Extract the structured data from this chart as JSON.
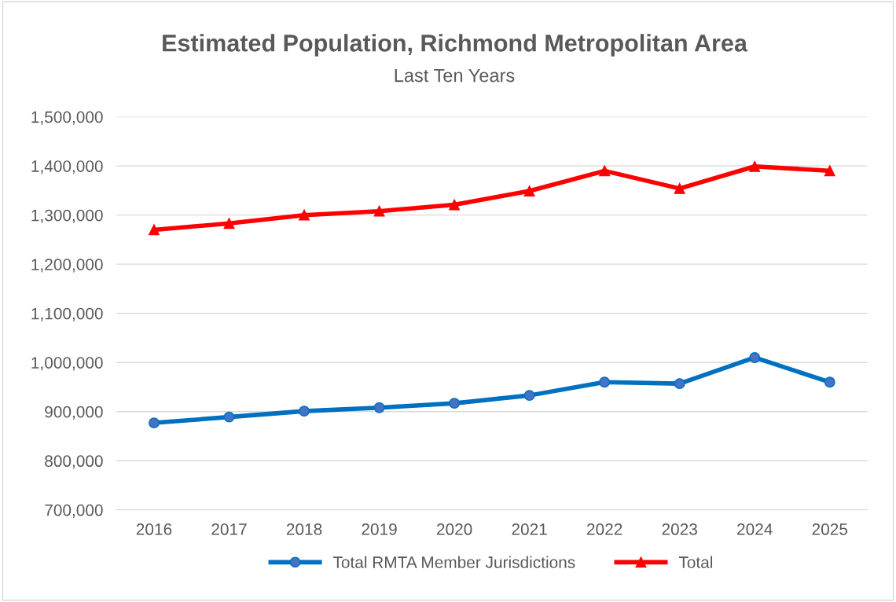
{
  "chart_data": {
    "type": "line",
    "title": "Estimated Population, Richmond Metropolitan Area",
    "subtitle": "Last Ten Years",
    "categories": [
      "2016",
      "2017",
      "2018",
      "2019",
      "2020",
      "2021",
      "2022",
      "2023",
      "2024",
      "2025"
    ],
    "series": [
      {
        "name": "Total RMTA Member Jurisdictions",
        "color": "#0070c0",
        "marker": "circle",
        "values": [
          877000,
          889000,
          901000,
          908000,
          917000,
          933000,
          960000,
          957000,
          1010000,
          960000
        ]
      },
      {
        "name": "Total",
        "color": "#ff0000",
        "marker": "triangle",
        "values": [
          1270000,
          1283000,
          1300000,
          1308000,
          1321000,
          1349000,
          1390000,
          1354000,
          1399000,
          1390000
        ]
      }
    ],
    "ylim": [
      700000,
      1500000
    ],
    "yticks": [
      {
        "value": 700000,
        "label": "700,000"
      },
      {
        "value": 800000,
        "label": "800,000"
      },
      {
        "value": 900000,
        "label": "900,000"
      },
      {
        "value": 1000000,
        "label": "1,000,000"
      },
      {
        "value": 1100000,
        "label": "1,100,000"
      },
      {
        "value": 1200000,
        "label": "1,200,000"
      },
      {
        "value": 1300000,
        "label": "1,300,000"
      },
      {
        "value": 1400000,
        "label": "1,400,000"
      },
      {
        "value": 1500000,
        "label": "1,500,000"
      }
    ],
    "grid": "y",
    "legend": "bottom",
    "line_style": "solid"
  }
}
